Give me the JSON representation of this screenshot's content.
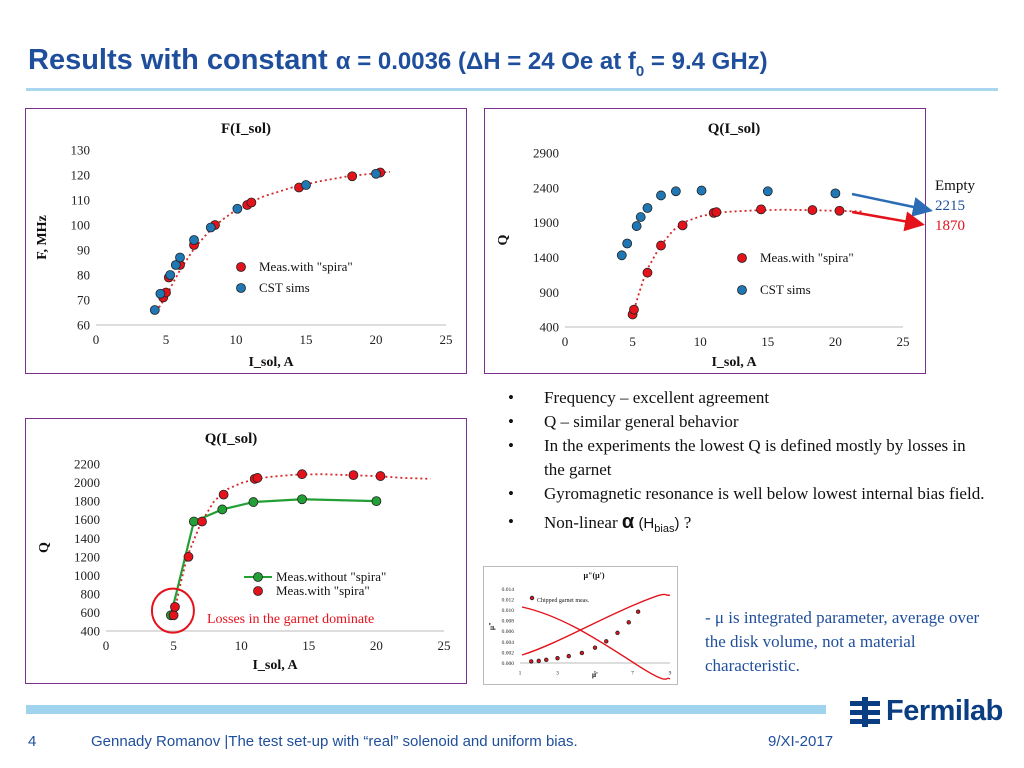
{
  "slide": {
    "title_main": "Results with constant",
    "title_alpha": "α = 0.0036 (ΔH = 24 Oe at f",
    "title_sub": "0",
    "title_tail": " = 9.4 GHz)",
    "side_note": {
      "label": "Empty",
      "blue_value": "2215",
      "red_value": "1870"
    },
    "bullets": [
      "Frequency – excellent agreement",
      "Q – similar general behavior",
      "In the experiments the lowest Q is defined mostly by losses in the garnet",
      "Gyromagnetic resonance is well below lowest internal bias field."
    ],
    "bullet_last": {
      "text": "Non-linear",
      "alpha": "α",
      "h": "(H",
      "h_sub": "bias",
      "close": ")",
      "q": "?"
    },
    "bullet_marker": "•",
    "mu_note": "- μ is integrated parameter, average over the disk volume, not a material characteristic.",
    "footer": {
      "page": "4",
      "author": "Gennady Romanov |The test set-up with “real” solenoid and uniform bias.",
      "date": "9/XI-2017"
    },
    "logo_text": "Fermilab",
    "colors": {
      "title": "#1f4e9c",
      "meas": "#e3121b",
      "cst": "#1f77b4",
      "without": "#22a035",
      "fit": "#d62728"
    }
  },
  "chart_data": [
    {
      "type": "scatter",
      "title": "F(I_sol)",
      "xlabel": "I_sol, A",
      "ylabel": "F, MHz",
      "xlim": [
        0,
        25
      ],
      "ylim": [
        60,
        130
      ],
      "xticks": [
        0,
        5,
        10,
        15,
        20,
        25
      ],
      "yticks": [
        60,
        70,
        80,
        90,
        100,
        110,
        120,
        130
      ],
      "legend": "center-right",
      "series": [
        {
          "name": "Meas.with \"spira\"",
          "marker": "red",
          "x": [
            4.8,
            5.0,
            5.2,
            6.0,
            7.0,
            8.5,
            10.8,
            11.1,
            14.5,
            18.3,
            20.3
          ],
          "y": [
            71,
            73,
            79,
            84,
            92,
            100,
            108,
            109,
            115,
            119.5,
            121
          ]
        },
        {
          "name": "CST sims",
          "marker": "blue",
          "x": [
            4.2,
            4.6,
            5.3,
            5.7,
            6.0,
            7.0,
            8.2,
            10.1,
            15.0,
            20.0
          ],
          "y": [
            66,
            72.5,
            80,
            84,
            87,
            94,
            99,
            106.5,
            116,
            120.5
          ]
        },
        {
          "name": "",
          "line": "dotted-red",
          "fit": true,
          "x": [
            4.5,
            5,
            6,
            7,
            8,
            9,
            10,
            11,
            12,
            14,
            16,
            18,
            20,
            21
          ],
          "y": [
            67,
            71.5,
            82,
            90.5,
            97,
            102,
            106,
            109,
            111.5,
            115,
            117.5,
            119.5,
            120.7,
            121.3
          ]
        }
      ]
    },
    {
      "type": "scatter",
      "title": "Q(I_sol)",
      "xlabel": "I_sol, A",
      "ylabel": "Q",
      "xlim": [
        0,
        25
      ],
      "ylim": [
        400,
        2900
      ],
      "xticks": [
        0,
        5,
        10,
        15,
        20,
        25
      ],
      "yticks": [
        400,
        900,
        1400,
        1900,
        2400,
        2900
      ],
      "legend": "center-right",
      "series": [
        {
          "name": "Meas.with \"spira\"",
          "marker": "red",
          "x": [
            5.0,
            5.1,
            6.1,
            7.1,
            8.7,
            11.0,
            11.2,
            14.5,
            18.3,
            20.3
          ],
          "y": [
            580,
            650,
            1180,
            1570,
            1860,
            2040,
            2050,
            2090,
            2080,
            2070
          ]
        },
        {
          "name": "CST sims",
          "marker": "blue",
          "x": [
            4.2,
            4.6,
            5.3,
            5.6,
            6.1,
            7.1,
            8.2,
            10.1,
            15.0,
            20.0
          ],
          "y": [
            1430,
            1600,
            1850,
            1980,
            2110,
            2290,
            2350,
            2360,
            2350,
            2320
          ]
        },
        {
          "name": "",
          "line": "dotted-red",
          "fit": true,
          "x": [
            5.0,
            5.5,
            6,
            7,
            8,
            9,
            10,
            11,
            12,
            14,
            16,
            18,
            20,
            22
          ],
          "y": [
            580,
            900,
            1200,
            1550,
            1790,
            1920,
            1990,
            2030,
            2055,
            2075,
            2085,
            2080,
            2070,
            2060
          ]
        }
      ]
    },
    {
      "type": "line",
      "title": "Q(I_sol)",
      "xlabel": "I_sol, A",
      "ylabel": "Q",
      "xlim": [
        0,
        25
      ],
      "ylim": [
        400,
        2200
      ],
      "xticks": [
        0,
        5,
        10,
        15,
        20,
        25
      ],
      "yticks": [
        400,
        600,
        800,
        1000,
        1200,
        1400,
        1600,
        1800,
        2000,
        2200
      ],
      "legend": "center-right",
      "annotation": "Losses in the garnet dominate",
      "series": [
        {
          "name": "Meas.without \"spira\"",
          "marker": "green",
          "line": "solid-green",
          "x": [
            4.8,
            6.5,
            8.6,
            10.9,
            14.5,
            20.0
          ],
          "y": [
            570,
            1580,
            1710,
            1790,
            1820,
            1800
          ]
        },
        {
          "name": "Meas.with \"spira\"",
          "marker": "red",
          "x": [
            5.0,
            5.1,
            6.1,
            7.1,
            8.7,
            11.0,
            11.2,
            14.5,
            18.3,
            20.3
          ],
          "y": [
            570,
            660,
            1200,
            1580,
            1870,
            2040,
            2050,
            2090,
            2080,
            2070
          ]
        },
        {
          "name": "",
          "line": "dotted-red",
          "fit": true,
          "x": [
            5.0,
            5.5,
            6,
            7,
            8,
            9,
            10,
            11,
            12,
            14,
            16,
            18,
            20,
            22,
            24
          ],
          "y": [
            570,
            900,
            1200,
            1560,
            1800,
            1930,
            1995,
            2035,
            2060,
            2085,
            2090,
            2080,
            2070,
            2050,
            2040
          ]
        }
      ]
    },
    {
      "type": "scatter",
      "title": "μ\"(μ')",
      "xlabel": "μ'",
      "ylabel": "μ\"",
      "xlim": [
        1,
        9
      ],
      "ylim": [
        0,
        0.014
      ],
      "xticks": [
        1,
        3,
        5,
        7,
        9
      ],
      "yticks": [
        0,
        0.002,
        0.004,
        0.006,
        0.008,
        0.01,
        0.012,
        0.014
      ],
      "series": [
        {
          "name": "Chipped garnet meas.",
          "marker": "red",
          "x": [
            1.6,
            2.0,
            2.4,
            3.0,
            3.6,
            4.3,
            5.0,
            5.6,
            6.2,
            6.8,
            7.3
          ],
          "y": [
            0.0003,
            0.0004,
            0.0006,
            0.0009,
            0.0013,
            0.0019,
            0.0029,
            0.0041,
            0.0057,
            0.0077,
            0.0097
          ]
        }
      ]
    }
  ]
}
